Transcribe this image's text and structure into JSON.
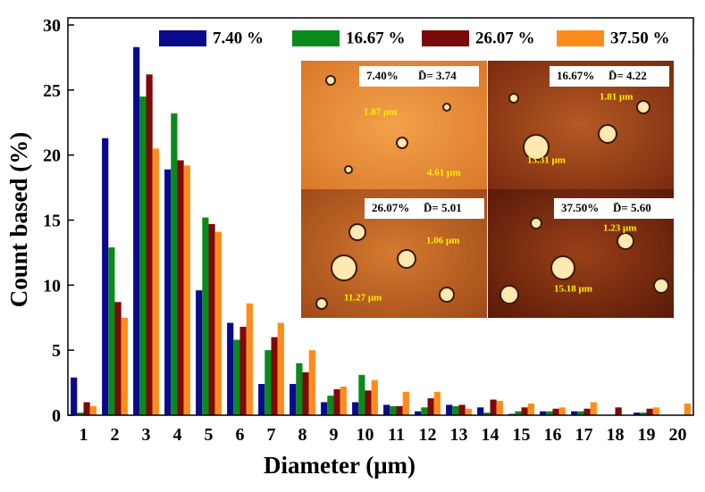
{
  "chart_data": {
    "type": "bar",
    "x_label": "Diameter (μm)",
    "y_label": "Count based (%)",
    "categories": [
      "1",
      "2",
      "3",
      "4",
      "5",
      "6",
      "7",
      "8",
      "9",
      "10",
      "11",
      "12",
      "13",
      "14",
      "15",
      "16",
      "17",
      "18",
      "19",
      "20"
    ],
    "series": [
      {
        "name": "7.40 %",
        "color": "#0a0a8c",
        "values": [
          2.9,
          21.3,
          28.3,
          18.9,
          9.6,
          7.1,
          2.4,
          2.4,
          1.0,
          1.0,
          0.8,
          0.3,
          0.8,
          0.6,
          0.1,
          0.3,
          0.3,
          0,
          0.2,
          0
        ]
      },
      {
        "name": "16.67 %",
        "color": "#0b8a1c",
        "values": [
          0.2,
          12.9,
          24.5,
          23.2,
          15.2,
          5.8,
          5.0,
          4.0,
          1.5,
          3.1,
          0.7,
          0.6,
          0.7,
          0.2,
          0.3,
          0.3,
          0.3,
          0,
          0.2,
          0
        ]
      },
      {
        "name": "26.07 %",
        "color": "#7d0a0a",
        "values": [
          1.0,
          8.7,
          26.2,
          19.6,
          14.7,
          6.8,
          6.0,
          3.3,
          2.0,
          1.9,
          0.7,
          1.3,
          0.8,
          1.2,
          0.6,
          0.5,
          0.5,
          0.6,
          0.5,
          0
        ]
      },
      {
        "name": "37.50 %",
        "color": "#ff8c1a",
        "values": [
          0.7,
          7.5,
          20.5,
          19.2,
          14.1,
          8.6,
          7.1,
          5.0,
          2.2,
          2.7,
          1.8,
          1.8,
          0.5,
          1.1,
          0.9,
          0.6,
          1.0,
          0,
          0.6,
          0.9
        ]
      }
    ],
    "ylim": [
      0,
      30
    ],
    "yticks": [
      0,
      5,
      10,
      15,
      20,
      25,
      30
    ]
  },
  "inset": {
    "panels": [
      {
        "fraction": "7.40%",
        "mean": "D̄= 3.74",
        "sizes": [
          "1.87 μm",
          "4.61 μm"
        ]
      },
      {
        "fraction": "16.67%",
        "mean": "D̄= 4.22",
        "sizes": [
          "1.81 μm",
          "13.31 μm"
        ]
      },
      {
        "fraction": "26.07%",
        "mean": "D̄= 5.01",
        "sizes": [
          "1.06 μm",
          "11.27 μm"
        ]
      },
      {
        "fraction": "37.50%",
        "mean": "D̄= 5.60",
        "sizes": [
          "1.23 μm",
          "15.18 μm"
        ]
      }
    ]
  }
}
